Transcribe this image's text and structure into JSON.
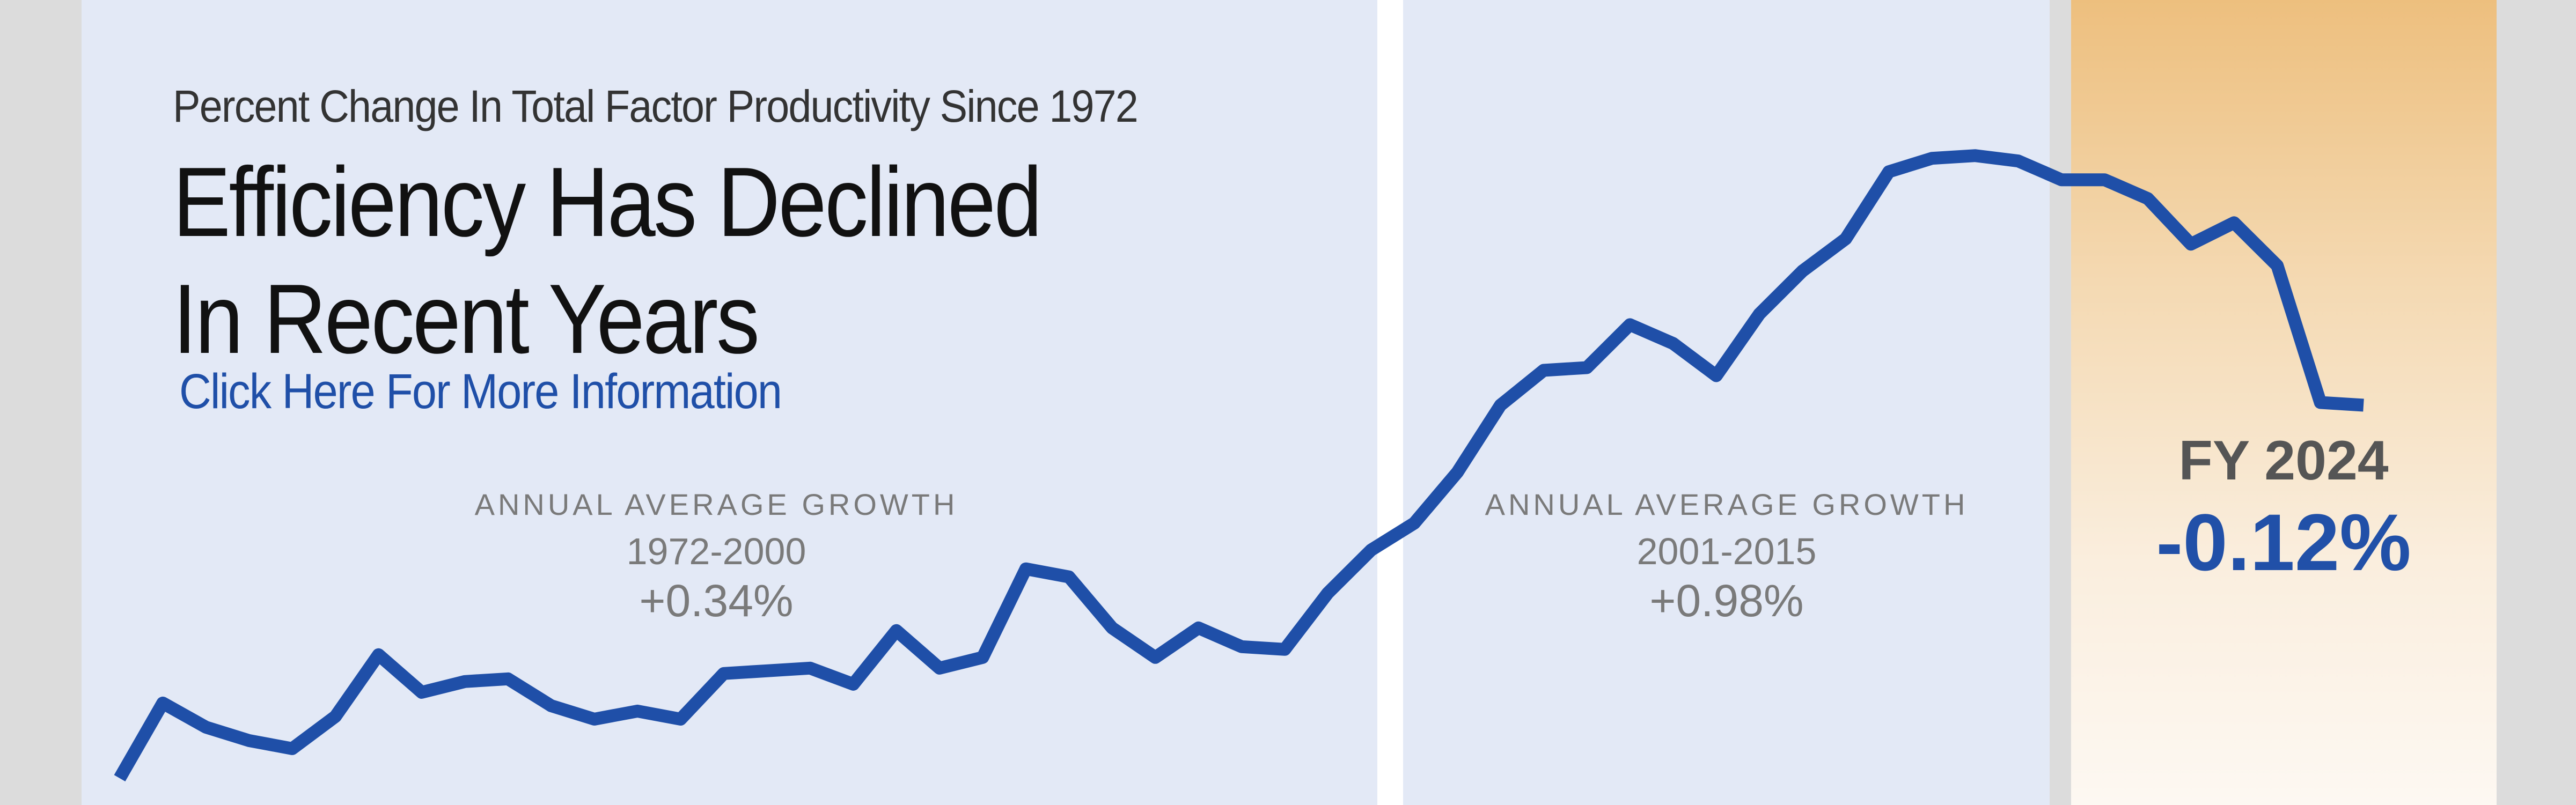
{
  "header": {
    "subtitle": "Percent Change In Total Factor Productivity Since 1972",
    "title_line1": "Efficiency Has Declined",
    "title_line2": "In Recent Years",
    "link_label": "Click Here For More Information"
  },
  "annotations": [
    {
      "label": "ANNUAL AVERAGE GROWTH",
      "range": "1972-2000",
      "value": "+0.34%"
    },
    {
      "label": "ANNUAL AVERAGE GROWTH",
      "range": "2001-2015",
      "value": "+0.98%"
    }
  ],
  "callout": {
    "label": "FY 2024",
    "value": "-0.12%"
  },
  "colors": {
    "line": "#1f4fa8",
    "panel_background": "#e3e9f6",
    "highlight_top": "#edbf7e",
    "highlight_bottom": "#fdf8f2",
    "callout_value": "#2150a8"
  },
  "chart_data": {
    "type": "line",
    "title": "Efficiency Has Declined In Recent Years",
    "subtitle": "Percent Change In Total Factor Productivity Since 1972",
    "xlabel": "",
    "ylabel": "",
    "grid": false,
    "legend": "none",
    "xlim": [
      1972,
      2024
    ],
    "ylim": [
      -1,
      29
    ],
    "periods": [
      {
        "start": 1972,
        "end": 2000,
        "annual_average_growth": 0.34
      },
      {
        "start": 2001,
        "end": 2015,
        "annual_average_growth": 0.98
      },
      {
        "start": 2016,
        "end": 2024,
        "annual_average_growth": -0.12
      }
    ],
    "series": [
      {
        "x": [
          1972,
          1973,
          1974,
          1975,
          1976,
          1977,
          1978,
          1979,
          1980,
          1981,
          1982,
          1983,
          1984,
          1985,
          1986,
          1987,
          1988,
          1989,
          1990,
          1991,
          1992,
          1993,
          1994,
          1995,
          1996,
          1997,
          1998,
          1999,
          2000,
          2001,
          2002,
          2003,
          2004,
          2005,
          2006,
          2007,
          2008,
          2009,
          2010,
          2011,
          2012,
          2013,
          2014,
          2015,
          2016,
          2017,
          2018,
          2019,
          2020,
          2021,
          2022,
          2023,
          2024
        ],
        "values": [
          0.0,
          2.8,
          1.9,
          1.4,
          1.1,
          2.3,
          4.6,
          3.2,
          3.6,
          3.7,
          2.7,
          2.2,
          2.5,
          2.2,
          3.9,
          4.0,
          4.1,
          3.5,
          5.5,
          4.1,
          4.5,
          7.8,
          7.5,
          5.6,
          4.5,
          5.6,
          4.9,
          4.8,
          6.9,
          8.5,
          9.5,
          11.4,
          13.9,
          15.2,
          15.3,
          16.9,
          16.2,
          15.0,
          17.3,
          18.9,
          20.1,
          22.6,
          23.1,
          23.2,
          23.0,
          22.3,
          22.3,
          21.6,
          19.9,
          20.7,
          19.1,
          14.0,
          13.9
        ]
      }
    ]
  }
}
